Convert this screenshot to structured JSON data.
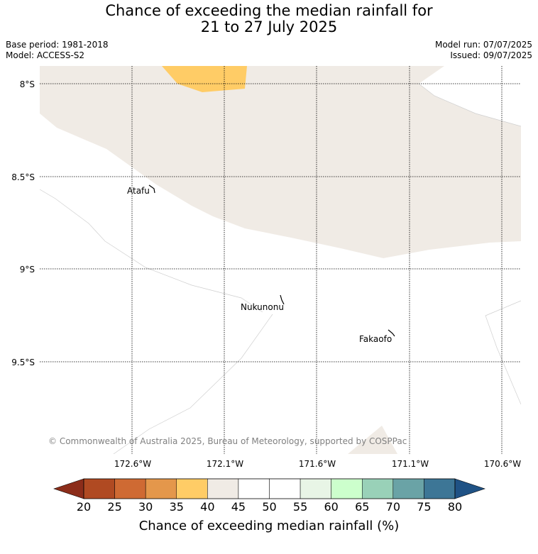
{
  "title_line1": "Chance of exceeding the median rainfall for",
  "title_line2": "21 to 27 July 2025",
  "base_period": "Base period: 1981-2018",
  "model": "Model: ACCESS-S2",
  "model_run": "Model run: 07/07/2025",
  "issued": "Issued: 09/07/2025",
  "lat_labels": [
    "8°S",
    "8.5°S",
    "9°S",
    "9.5°S"
  ],
  "lon_labels": [
    "172.6°W",
    "172.1°W",
    "171.6°W",
    "171.1°W",
    "170.6°W"
  ],
  "places": [
    "Atafu",
    "Nukunonu",
    "Fakaofo"
  ],
  "copyright": "© Commonwealth of Australia 2025, Bureau of Meteorology, supported by COSPPac",
  "colorbar": {
    "ticks": [
      "20",
      "25",
      "30",
      "35",
      "40",
      "45",
      "50",
      "55",
      "60",
      "65",
      "70",
      "75",
      "80"
    ],
    "label": "Chance of exceeding median rainfall (%)",
    "colors": [
      "#8c2d1a",
      "#b04a22",
      "#cf6a33",
      "#e4974b",
      "#ffcc66",
      "#f0ebe5",
      "#ffffff",
      "#ffffff",
      "#e8f5e6",
      "#ccffcc",
      "#99d1b8",
      "#6aa3a6",
      "#3d7696",
      "#1f5285"
    ]
  },
  "map_colors": {
    "band_40_45": "#f0ebe5",
    "band_35_40": "#ffcc66",
    "band_45_55": "#ffffff"
  }
}
